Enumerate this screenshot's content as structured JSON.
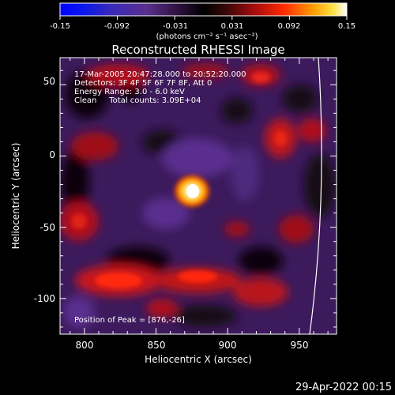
{
  "colorbar": {
    "tick_labels": [
      "-0.15",
      "-0.092",
      "-0.031",
      "0.031",
      "0.092",
      "0.15"
    ],
    "unit_label": "(photons cm⁻² s⁻¹ asec⁻²)",
    "range": [
      -0.15,
      0.15
    ]
  },
  "plot": {
    "title": "Reconstructed RHESSI Image",
    "xlabel": "Heliocentric X (arcsec)",
    "ylabel": "Heliocentric Y (arcsec)",
    "x_ticks": [
      "800",
      "850",
      "900",
      "950"
    ],
    "y_ticks": [
      "50",
      "0",
      "-50",
      "-100"
    ],
    "xlim": [
      783,
      976
    ],
    "ylim": [
      -125,
      69
    ],
    "annotations": [
      "17-Mar-2005 20:47:28.000 to 20:52:20.000",
      "Detectors: 3F 4F 5F 6F 7F 8F, Att 0",
      "Energy Range: 3.0 - 6.0 keV",
      "Clean     Total counts: 3.09E+04"
    ],
    "peak_label": "Position of Peak = [876,-26]",
    "peak": {
      "x": 876,
      "y": -26
    }
  },
  "footer": {
    "timestamp": "29-Apr-2022 00:15"
  }
}
